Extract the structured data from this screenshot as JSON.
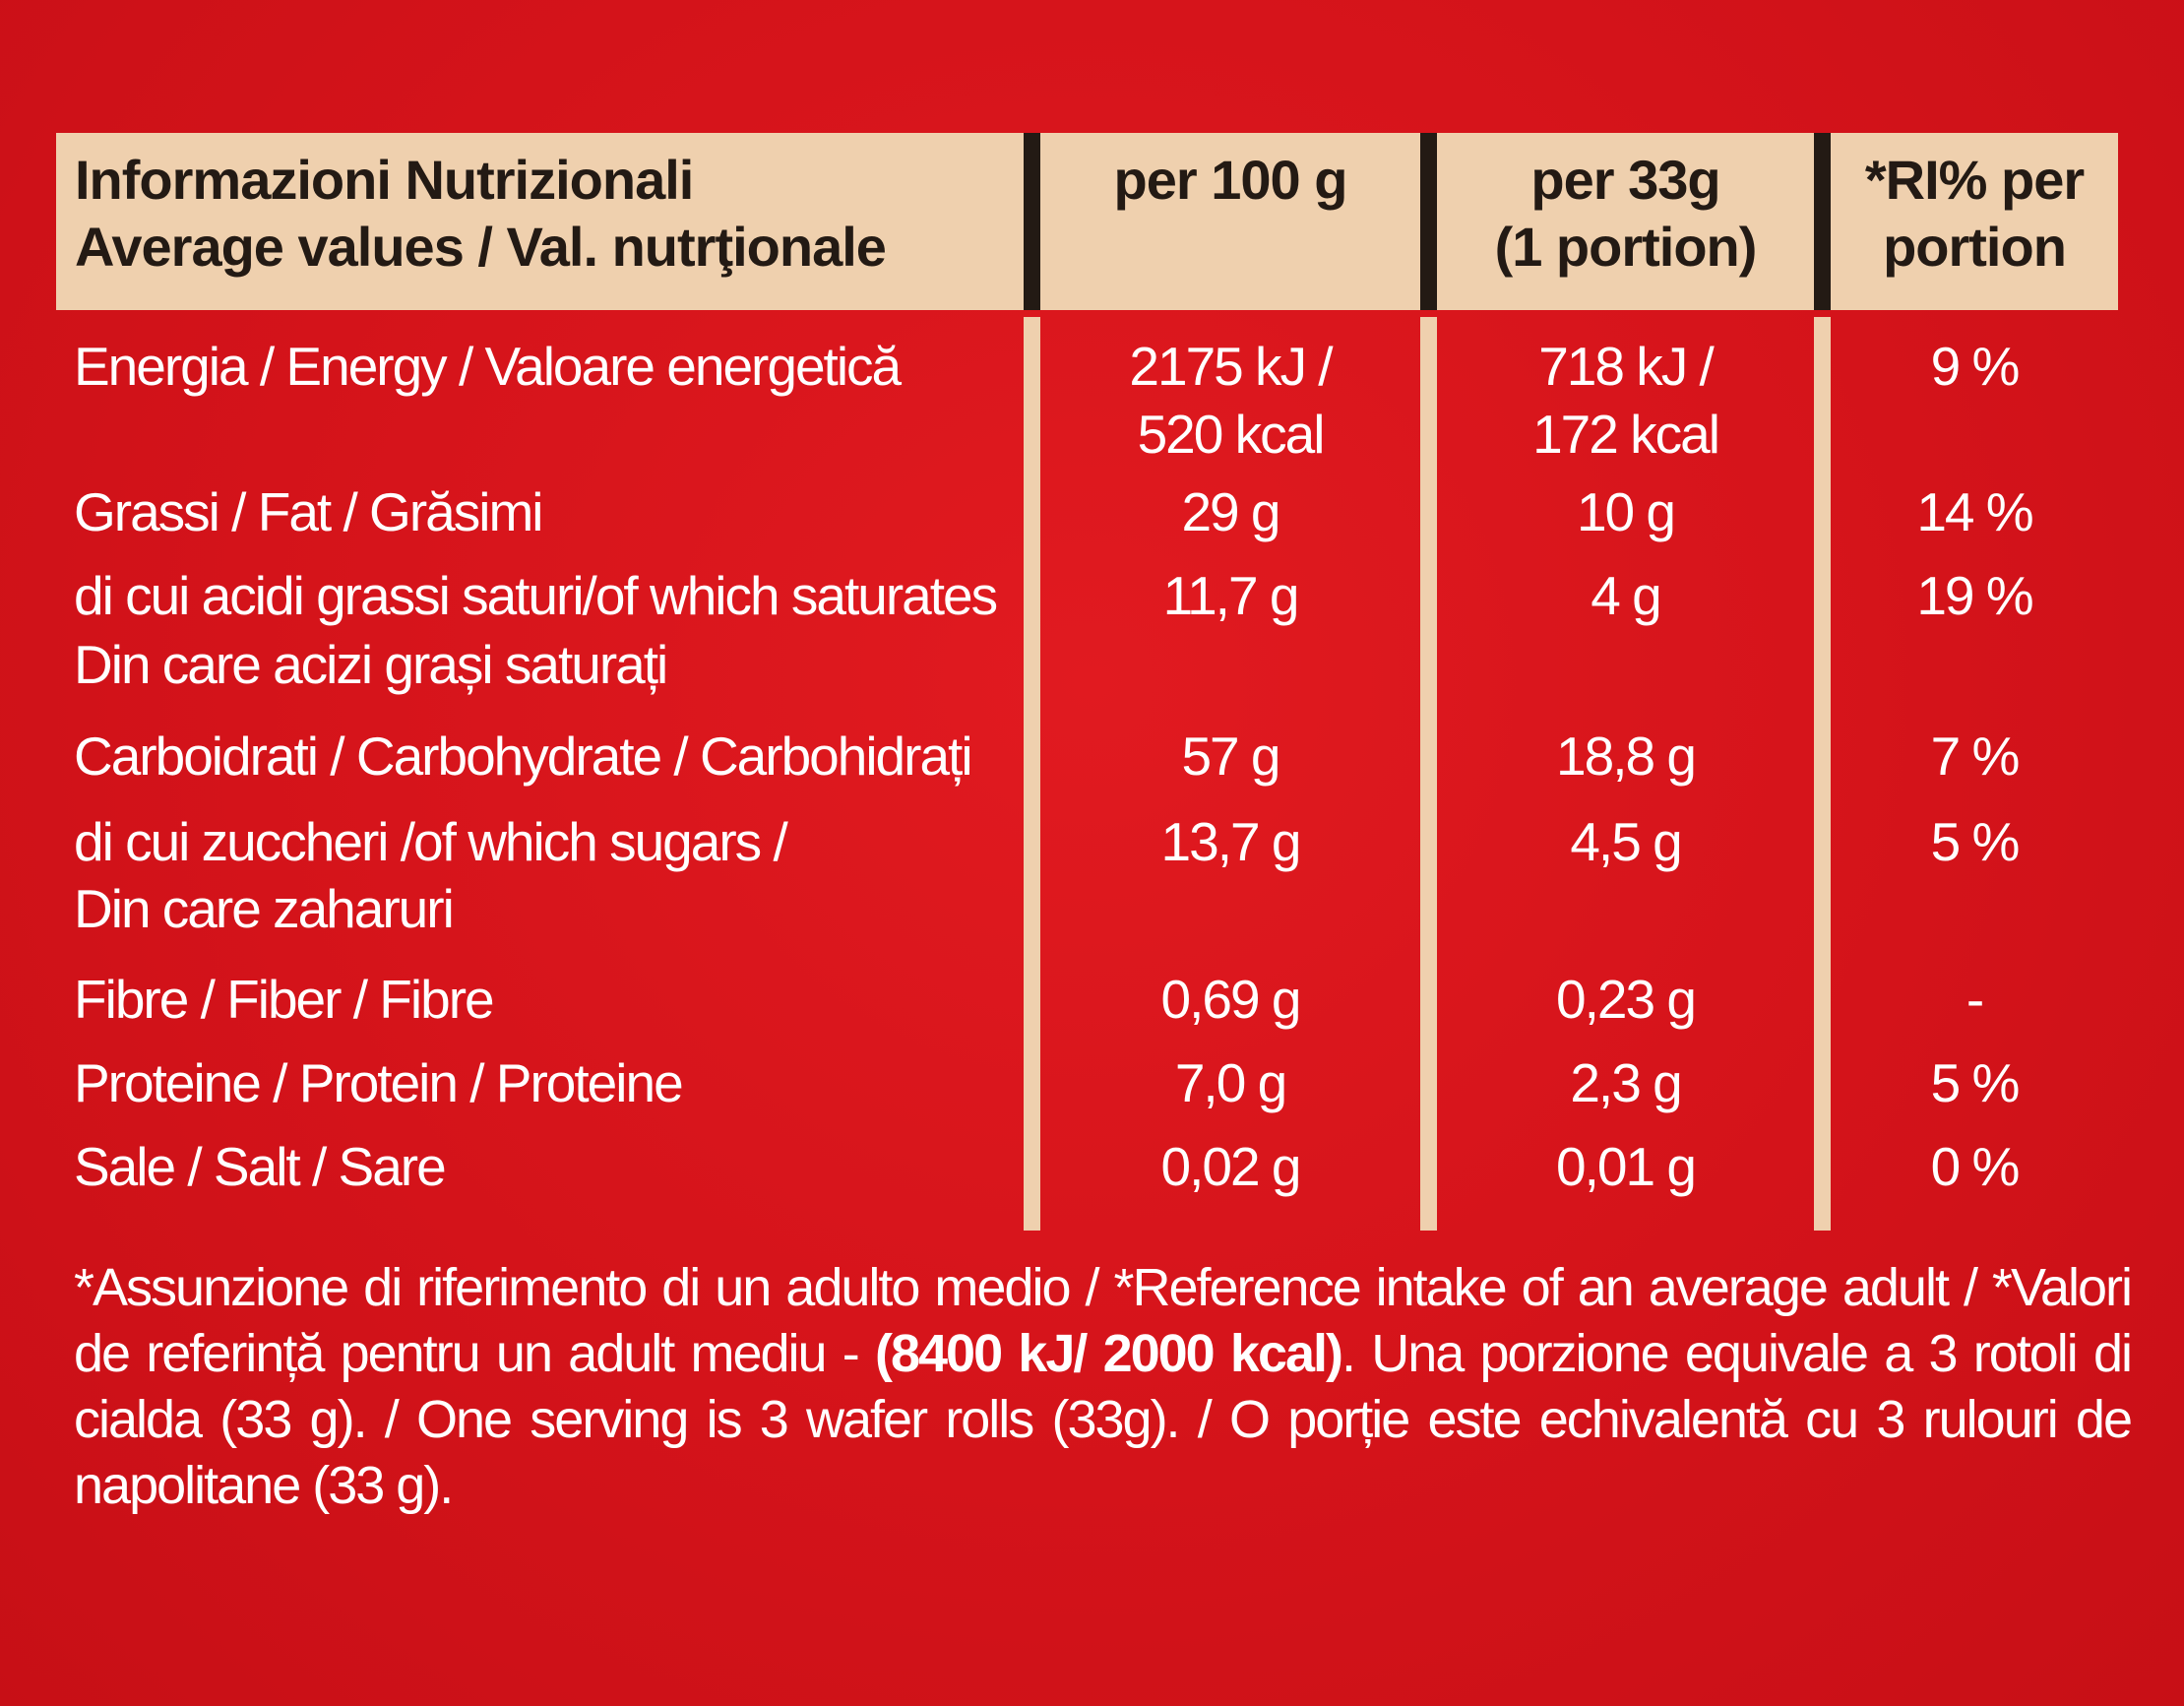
{
  "header": {
    "label_line1": "Informazioni Nutrizionali",
    "label_line2": "Average values / Val. nutrţionale",
    "col1": "per 100 g",
    "col2_line1": "per 33g",
    "col2_line2": "(1 portion)",
    "col3_line1": "*RI% per",
    "col3_line2": "portion"
  },
  "rows": [
    {
      "label": "Energia / Energy / Valoare energetică",
      "label2": "",
      "per100_line1": "2175 kJ /",
      "per100_line2": "520 kcal",
      "per33_line1": "718 kJ /",
      "per33_line2": "172 kcal",
      "ri": "9 %"
    },
    {
      "label": "Grassi / Fat / Grăsimi",
      "label2": "",
      "per100_line1": "29 g",
      "per100_line2": "",
      "per33_line1": "10 g",
      "per33_line2": "",
      "ri": "14 %"
    },
    {
      "label": "di cui acidi grassi saturi/of which saturates",
      "label2": "Din care acizi grași saturați",
      "per100_line1": "11,7 g",
      "per100_line2": "",
      "per33_line1": "4 g",
      "per33_line2": "",
      "ri": "19 %"
    },
    {
      "label": "Carboidrati / Carbohydrate / Carbohidrați",
      "label2": "",
      "per100_line1": "57 g",
      "per100_line2": "",
      "per33_line1": "18,8 g",
      "per33_line2": "",
      "ri": "7 %"
    },
    {
      "label": "di cui zuccheri /of which sugars /",
      "label2": "Din care zaharuri",
      "per100_line1": "13,7 g",
      "per100_line2": "",
      "per33_line1": "4,5 g",
      "per33_line2": "",
      "ri": "5 %"
    },
    {
      "label": "Fibre / Fiber / Fibre",
      "label2": "",
      "per100_line1": "0,69 g",
      "per100_line2": "",
      "per33_line1": "0,23 g",
      "per33_line2": "",
      "ri": "-"
    },
    {
      "label": "Proteine / Protein / Proteine",
      "label2": "",
      "per100_line1": "7,0 g",
      "per100_line2": "",
      "per33_line1": "2,3 g",
      "per33_line2": "",
      "ri": "5 %"
    },
    {
      "label": "Sale / Salt / Sare",
      "label2": "",
      "per100_line1": "0,02 g",
      "per100_line2": "",
      "per33_line1": "0,01 g",
      "per33_line2": "",
      "ri": "0 %"
    }
  ],
  "footnote": {
    "text_before": "*Assunzione di riferimento di un adulto medio / *Reference intake of an average adult / *Valori de referință pentru un adult mediu - ",
    "bold": "(8400 kJ/ 2000 kcal)",
    "text_after": ". Una porzione equivale a 3 rotoli di cialda (33 g). / One serving is 3 wafer rolls (33g). / O porție este echivalentă cu 3 rulouri de napolitane (33 g)."
  },
  "colors": {
    "background": "#d8141b",
    "header_band": "#efd0ae",
    "divider_dark": "#231a14",
    "text_dark": "#231a14",
    "text_light": "#ffffff"
  }
}
